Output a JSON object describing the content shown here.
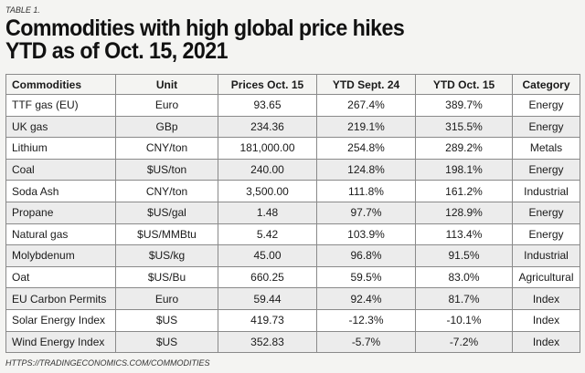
{
  "table_label": "TABLE 1.",
  "title_line1": "Commodities with high global price hikes",
  "title_line2": "YTD as of Oct. 15, 2021",
  "headers": [
    "Commodities",
    "Unit",
    "Prices Oct. 15",
    "YTD Sept. 24",
    "YTD Oct. 15",
    "Category"
  ],
  "rows": [
    [
      "TTF gas (EU)",
      "Euro",
      "93.65",
      "267.4%",
      "389.7%",
      "Energy"
    ],
    [
      "UK gas",
      "GBp",
      "234.36",
      "219.1%",
      "315.5%",
      "Energy"
    ],
    [
      "Lithium",
      "CNY/ton",
      "181,000.00",
      "254.8%",
      "289.2%",
      "Metals"
    ],
    [
      "Coal",
      "$US/ton",
      "240.00",
      "124.8%",
      "198.1%",
      "Energy"
    ],
    [
      "Soda Ash",
      "CNY/ton",
      "3,500.00",
      "111.8%",
      "161.2%",
      "Industrial"
    ],
    [
      "Propane",
      "$US/gal",
      "1.48",
      "97.7%",
      "128.9%",
      "Energy"
    ],
    [
      "Natural gas",
      "$US/MMBtu",
      "5.42",
      "103.9%",
      "113.4%",
      "Energy"
    ],
    [
      "Molybdenum",
      "$US/kg",
      "45.00",
      "96.8%",
      "91.5%",
      "Industrial"
    ],
    [
      "Oat",
      "$US/Bu",
      "660.25",
      "59.5%",
      "83.0%",
      "Agricultural"
    ],
    [
      "EU Carbon Permits",
      "Euro",
      "59.44",
      "92.4%",
      "81.7%",
      "Index"
    ],
    [
      "Solar Energy Index",
      "$US",
      "419.73",
      "-12.3%",
      "-10.1%",
      "Index"
    ],
    [
      "Wind Energy Index",
      "$US",
      "352.83",
      "-5.7%",
      "-7.2%",
      "Index"
    ]
  ],
  "source": "HTTPS://TRADINGECONOMICS.COM/COMMODITIES"
}
